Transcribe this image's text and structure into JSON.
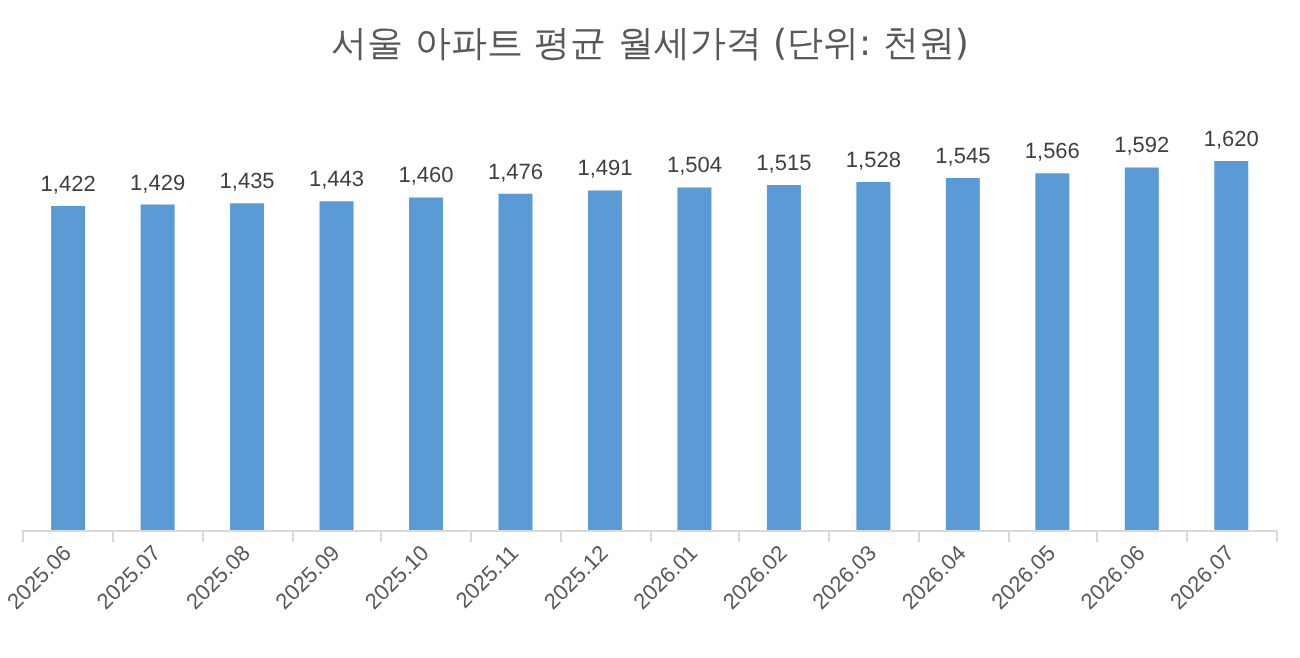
{
  "chart_data": {
    "type": "bar",
    "title": "서울 아파트 평균 월세가격 (단위: 천원)",
    "categories": [
      "2025.06",
      "2025.07",
      "2025.08",
      "2025.09",
      "2025.10",
      "2025.11",
      "2025.12",
      "2026.01",
      "2026.02",
      "2026.03",
      "2026.04",
      "2026.05",
      "2026.06",
      "2026.07"
    ],
    "values": [
      1422,
      1429,
      1435,
      1443,
      1460,
      1476,
      1491,
      1504,
      1515,
      1528,
      1545,
      1566,
      1592,
      1620
    ],
    "value_labels": [
      "1,422",
      "1,429",
      "1,435",
      "1,443",
      "1,460",
      "1,476",
      "1,491",
      "1,504",
      "1,515",
      "1,528",
      "1,545",
      "1,566",
      "1,592",
      "1,620"
    ],
    "color": "#5b9bd5",
    "tick_labels": "x"
  }
}
